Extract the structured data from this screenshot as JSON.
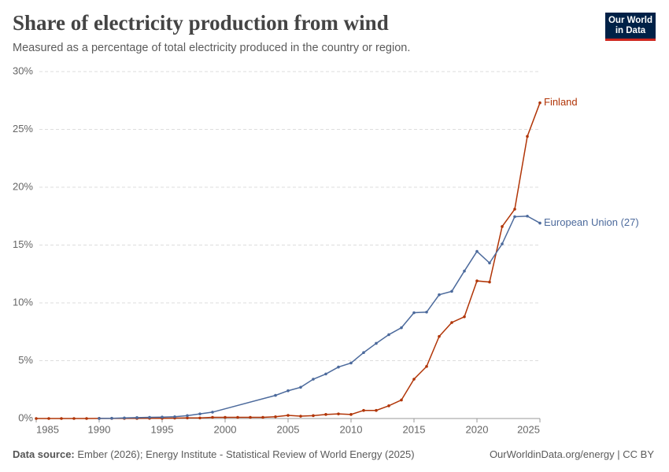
{
  "chart_data": {
    "type": "line",
    "title": "Share of electricity production from wind",
    "subtitle": "Measured as a percentage of total electricity produced in the country or region.",
    "xlim": [
      1985,
      2025
    ],
    "xticks": [
      1985,
      1990,
      1995,
      2000,
      2005,
      2010,
      2015,
      2020,
      2025
    ],
    "ylim": [
      0,
      30
    ],
    "yticks": [
      {
        "value": 0,
        "label": "0%"
      },
      {
        "value": 5,
        "label": "5%"
      },
      {
        "value": 10,
        "label": "10%"
      },
      {
        "value": 15,
        "label": "15%"
      },
      {
        "value": 20,
        "label": "20%"
      },
      {
        "value": 25,
        "label": "25%"
      },
      {
        "value": 30,
        "label": "30%"
      }
    ],
    "grid": true,
    "series": [
      {
        "name": "Finland",
        "color": "#b13507",
        "x": [
          1985,
          1986,
          1987,
          1988,
          1989,
          1990,
          1991,
          1992,
          1993,
          1994,
          1995,
          1996,
          1997,
          1998,
          1999,
          2000,
          2001,
          2002,
          2003,
          2004,
          2005,
          2006,
          2007,
          2008,
          2009,
          2010,
          2011,
          2012,
          2013,
          2014,
          2015,
          2016,
          2017,
          2018,
          2019,
          2020,
          2021,
          2022,
          2023,
          2024,
          2025
        ],
        "values": [
          0,
          0,
          0,
          0,
          0,
          0.01,
          0.01,
          0.01,
          0.01,
          0.02,
          0.02,
          0.03,
          0.05,
          0.05,
          0.1,
          0.1,
          0.1,
          0.1,
          0.1,
          0.15,
          0.27,
          0.2,
          0.25,
          0.35,
          0.4,
          0.35,
          0.7,
          0.7,
          1.1,
          1.6,
          3.4,
          4.5,
          7.1,
          8.3,
          8.8,
          11.9,
          11.8,
          16.6,
          18.1,
          24.4,
          27.3
        ]
      },
      {
        "name": "European Union (27)",
        "color": "#4c6a9c",
        "x": [
          1990,
          1991,
          1992,
          1993,
          1994,
          1995,
          1996,
          1997,
          1998,
          1999,
          2004,
          2005,
          2006,
          2007,
          2008,
          2009,
          2010,
          2011,
          2012,
          2013,
          2014,
          2015,
          2016,
          2017,
          2018,
          2019,
          2020,
          2021,
          2022,
          2023,
          2024,
          2025
        ],
        "values": [
          0.01,
          0.02,
          0.05,
          0.08,
          0.1,
          0.12,
          0.15,
          0.25,
          0.4,
          0.55,
          2.0,
          2.4,
          2.7,
          3.4,
          3.85,
          4.45,
          4.8,
          5.7,
          6.5,
          7.25,
          7.85,
          9.15,
          9.2,
          10.7,
          11.0,
          12.75,
          14.45,
          13.45,
          15.1,
          17.45,
          17.5,
          16.9
        ]
      }
    ]
  },
  "footer": {
    "source_label": "Data source:",
    "source_text": "Ember (2026); Energy Institute - Statistical Review of World Energy (2025)",
    "right": "OurWorldinData.org/energy | CC BY"
  },
  "logo": {
    "line1": "Our World",
    "line2": "in Data"
  }
}
